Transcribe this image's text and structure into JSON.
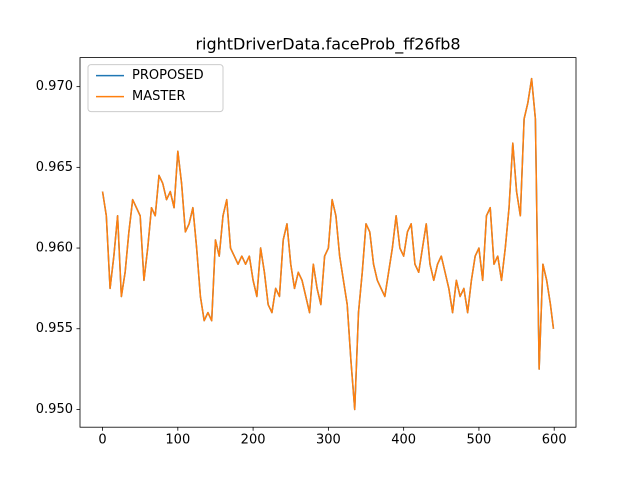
{
  "chart_data": {
    "type": "line",
    "title": "rightDriverData.faceProb_ff26fb8",
    "x": [
      0,
      5,
      10,
      15,
      20,
      25,
      30,
      35,
      40,
      45,
      50,
      55,
      60,
      65,
      70,
      75,
      80,
      85,
      90,
      95,
      100,
      105,
      110,
      115,
      120,
      125,
      130,
      135,
      140,
      145,
      150,
      155,
      160,
      165,
      170,
      175,
      180,
      185,
      190,
      195,
      200,
      205,
      210,
      215,
      220,
      225,
      230,
      235,
      240,
      245,
      250,
      255,
      260,
      265,
      270,
      275,
      280,
      285,
      290,
      295,
      300,
      305,
      310,
      315,
      320,
      325,
      330,
      335,
      340,
      345,
      350,
      355,
      360,
      365,
      370,
      375,
      380,
      385,
      390,
      395,
      400,
      405,
      410,
      415,
      420,
      425,
      430,
      435,
      440,
      445,
      450,
      455,
      460,
      465,
      470,
      475,
      480,
      485,
      490,
      495,
      500,
      505,
      510,
      515,
      520,
      525,
      530,
      535,
      540,
      545,
      550,
      555,
      560,
      565,
      570,
      575,
      580,
      585,
      590,
      595,
      599
    ],
    "series": [
      {
        "name": "PROPOSED",
        "color": "#1f77b4",
        "values": [
          0.9635,
          0.962,
          0.9575,
          0.9595,
          0.962,
          0.957,
          0.9585,
          0.961,
          0.963,
          0.9625,
          0.962,
          0.958,
          0.96,
          0.9625,
          0.962,
          0.9645,
          0.964,
          0.963,
          0.9635,
          0.9625,
          0.966,
          0.964,
          0.961,
          0.9615,
          0.9625,
          0.96,
          0.957,
          0.9555,
          0.956,
          0.9555,
          0.9605,
          0.9595,
          0.962,
          0.963,
          0.96,
          0.9595,
          0.959,
          0.9595,
          0.959,
          0.9595,
          0.958,
          0.957,
          0.96,
          0.9585,
          0.9565,
          0.956,
          0.9575,
          0.957,
          0.9605,
          0.9615,
          0.959,
          0.9575,
          0.9585,
          0.958,
          0.957,
          0.956,
          0.959,
          0.9575,
          0.9565,
          0.9595,
          0.96,
          0.963,
          0.962,
          0.9595,
          0.958,
          0.9565,
          0.953,
          0.95,
          0.956,
          0.9585,
          0.9615,
          0.961,
          0.959,
          0.958,
          0.9575,
          0.957,
          0.9585,
          0.96,
          0.962,
          0.96,
          0.9595,
          0.961,
          0.9615,
          0.959,
          0.9585,
          0.96,
          0.9615,
          0.959,
          0.958,
          0.959,
          0.9595,
          0.9585,
          0.9575,
          0.956,
          0.958,
          0.957,
          0.9575,
          0.956,
          0.958,
          0.9595,
          0.96,
          0.958,
          0.962,
          0.9625,
          0.959,
          0.9595,
          0.958,
          0.96,
          0.9625,
          0.9665,
          0.9635,
          0.962,
          0.968,
          0.969,
          0.9705,
          0.968,
          0.9525,
          0.959,
          0.958,
          0.9565,
          0.955
        ]
      },
      {
        "name": "MASTER",
        "color": "#ff7f0e",
        "values": [
          0.9635,
          0.962,
          0.9575,
          0.9595,
          0.962,
          0.957,
          0.9585,
          0.961,
          0.963,
          0.9625,
          0.962,
          0.958,
          0.96,
          0.9625,
          0.962,
          0.9645,
          0.964,
          0.963,
          0.9635,
          0.9625,
          0.966,
          0.964,
          0.961,
          0.9615,
          0.9625,
          0.96,
          0.957,
          0.9555,
          0.956,
          0.9555,
          0.9605,
          0.9595,
          0.962,
          0.963,
          0.96,
          0.9595,
          0.959,
          0.9595,
          0.959,
          0.9595,
          0.958,
          0.957,
          0.96,
          0.9585,
          0.9565,
          0.956,
          0.9575,
          0.957,
          0.9605,
          0.9615,
          0.959,
          0.9575,
          0.9585,
          0.958,
          0.957,
          0.956,
          0.959,
          0.9575,
          0.9565,
          0.9595,
          0.96,
          0.963,
          0.962,
          0.9595,
          0.958,
          0.9565,
          0.953,
          0.95,
          0.956,
          0.9585,
          0.9615,
          0.961,
          0.959,
          0.958,
          0.9575,
          0.957,
          0.9585,
          0.96,
          0.962,
          0.96,
          0.9595,
          0.961,
          0.9615,
          0.959,
          0.9585,
          0.96,
          0.9615,
          0.959,
          0.958,
          0.959,
          0.9595,
          0.9585,
          0.9575,
          0.956,
          0.958,
          0.957,
          0.9575,
          0.956,
          0.958,
          0.9595,
          0.96,
          0.958,
          0.962,
          0.9625,
          0.959,
          0.9595,
          0.958,
          0.96,
          0.9625,
          0.9665,
          0.9635,
          0.962,
          0.968,
          0.969,
          0.9705,
          0.968,
          0.9525,
          0.959,
          0.958,
          0.9565,
          0.955
        ]
      }
    ],
    "xlim": [
      -29.95,
      628.95
    ],
    "xticks": [
      0,
      100,
      200,
      300,
      400,
      500,
      600
    ],
    "ylim": [
      0.9489,
      0.9718
    ],
    "yticks": [
      {
        "value": 0.95,
        "label": "0.950"
      },
      0.955,
      {
        "value": 0.96,
        "label": "0.960"
      },
      0.965,
      {
        "value": 0.97,
        "label": "0.970"
      }
    ],
    "legend": "upper left"
  }
}
